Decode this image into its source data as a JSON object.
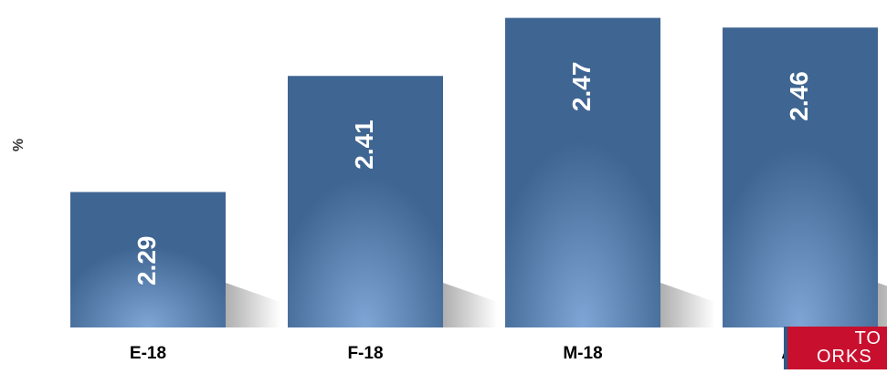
{
  "chart_data": {
    "type": "bar",
    "categories": [
      "E-18",
      "F-18",
      "M-18",
      "A-18"
    ],
    "values": [
      2.29,
      2.41,
      2.47,
      2.46
    ],
    "title": "",
    "xlabel": "",
    "ylabel": "%",
    "ylim": [
      2.15,
      2.48
    ],
    "grid": false,
    "legend": "none",
    "colors": {
      "bar": "#3f6592",
      "bar_glow": "#7fa6d6",
      "label": "#ffffff",
      "tick": "#000000"
    }
  },
  "logo": {
    "line1": "TO",
    "line2": "ORKS"
  }
}
